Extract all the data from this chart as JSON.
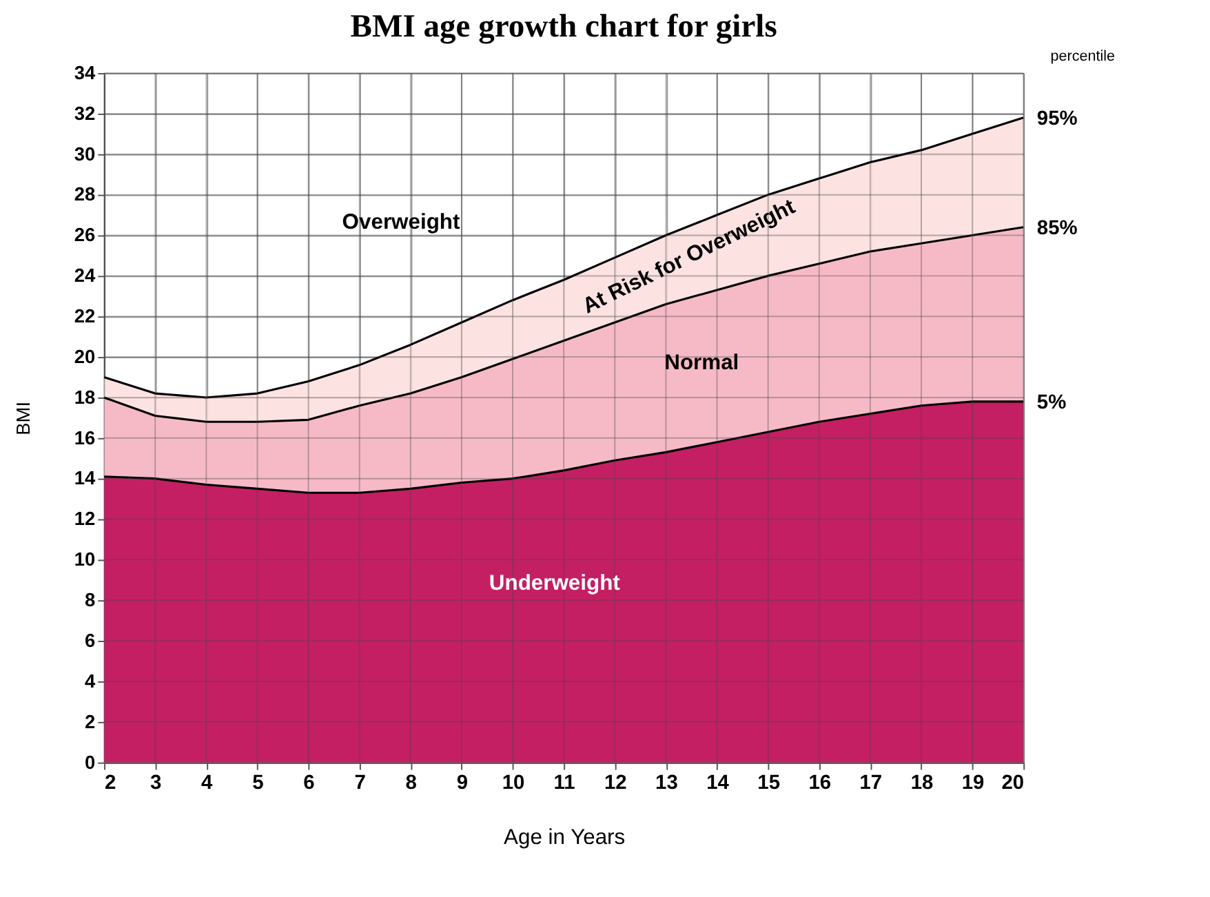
{
  "chart_data": {
    "type": "area",
    "title": "BMI age growth chart for girls",
    "xlabel": "Age in Years",
    "ylabel": "BMI",
    "x": [
      2,
      3,
      4,
      5,
      6,
      7,
      8,
      9,
      10,
      11,
      12,
      13,
      14,
      15,
      16,
      17,
      18,
      19,
      20
    ],
    "series": [
      {
        "name": "95%",
        "color": "#fcdedd",
        "values": [
          19.0,
          18.2,
          18.0,
          18.2,
          18.8,
          19.6,
          20.6,
          21.7,
          22.8,
          23.8,
          24.9,
          26.0,
          27.0,
          28.0,
          28.8,
          29.6,
          30.2,
          31.0,
          31.8
        ]
      },
      {
        "name": "85%",
        "color": "#f4b3c1",
        "values": [
          18.0,
          17.1,
          16.8,
          16.8,
          16.9,
          17.6,
          18.2,
          19.0,
          19.9,
          20.8,
          21.7,
          22.6,
          23.3,
          24.0,
          24.6,
          25.2,
          25.6,
          26.0,
          26.4
        ]
      },
      {
        "name": "5%",
        "color": "#c41f63",
        "values": [
          14.1,
          14.0,
          13.7,
          13.5,
          13.3,
          13.3,
          13.5,
          13.8,
          14.0,
          14.4,
          14.9,
          15.3,
          15.8,
          16.3,
          16.8,
          17.2,
          17.6,
          17.8,
          17.8
        ]
      }
    ],
    "xlim": [
      2,
      20
    ],
    "xticks": [
      2,
      3,
      4,
      5,
      6,
      7,
      8,
      9,
      10,
      11,
      12,
      13,
      14,
      15,
      16,
      17,
      18,
      19,
      20
    ],
    "ylim": [
      0,
      34
    ],
    "yticks": [
      0,
      2,
      4,
      6,
      8,
      10,
      12,
      14,
      16,
      18,
      20,
      22,
      24,
      26,
      28,
      30,
      32,
      34
    ],
    "grid": true,
    "legend": false,
    "line_style": "solid",
    "annotations": [
      "Overweight",
      "At Risk for Overweight",
      "Normal",
      "Underweight",
      "percentile"
    ]
  }
}
